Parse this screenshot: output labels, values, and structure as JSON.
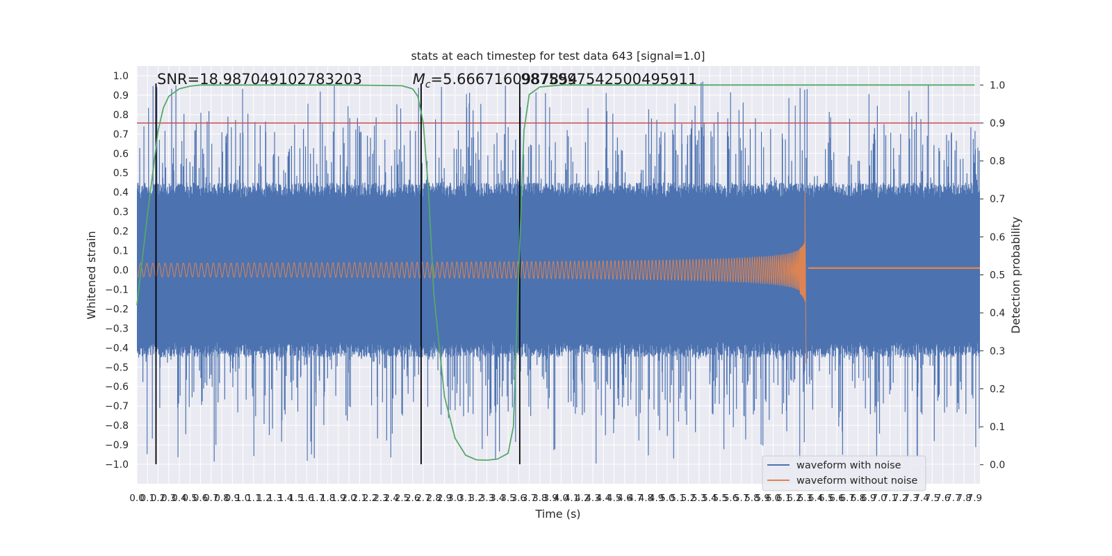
{
  "chart_data": {
    "type": "line",
    "title": "stats at each timestep for test data 643 [signal=1.0]",
    "xlabel": "Time (s)",
    "ylabel_left": "Whitened strain",
    "ylabel_right": "Detection probability",
    "xlim": [
      0.0,
      7.95
    ],
    "ylim_left": [
      -1.1,
      1.05
    ],
    "ylim_right": [
      -0.05,
      1.05
    ],
    "x_ticks": [
      "0.0",
      "0.1",
      "0.2",
      "0.3",
      "0.4",
      "0.5",
      "0.6",
      "0.7",
      "0.8",
      "0.9",
      "1.0",
      "1.1",
      "1.2",
      "1.3",
      "1.4",
      "1.5",
      "1.6",
      "1.7",
      "1.8",
      "1.9",
      "2.0",
      "2.1",
      "2.2",
      "2.3",
      "2.4",
      "2.5",
      "2.6",
      "2.7",
      "2.8",
      "2.9",
      "3.0",
      "3.1",
      "3.2",
      "3.3",
      "3.4",
      "3.5",
      "3.6",
      "3.7",
      "3.8",
      "3.9",
      "4.0",
      "4.1",
      "4.2",
      "4.3",
      "4.4",
      "4.5",
      "4.6",
      "4.7",
      "4.8",
      "4.9",
      "5.0",
      "5.1",
      "5.2",
      "5.3",
      "5.4",
      "5.5",
      "5.6",
      "5.7",
      "5.8",
      "5.9",
      "6.0",
      "6.1",
      "6.2",
      "6.3",
      "6.4",
      "6.5",
      "6.6",
      "6.7",
      "6.8",
      "6.9",
      "7.0",
      "7.1",
      "7.2",
      "7.3",
      "7.4",
      "7.5",
      "7.6",
      "7.7",
      "7.8",
      "7.9"
    ],
    "y_ticks_left": [
      "1.0",
      "0.9",
      "0.8",
      "0.7",
      "0.6",
      "0.5",
      "0.4",
      "0.3",
      "0.2",
      "0.1",
      "0.0",
      "−0.1",
      "−0.2",
      "−0.3",
      "−0.4",
      "−0.5",
      "−0.6",
      "−0.7",
      "−0.8",
      "−0.9",
      "−1.0"
    ],
    "y_ticks_right": [
      "1.0",
      "0.9",
      "0.8",
      "0.7",
      "0.6",
      "0.5",
      "0.4",
      "0.3",
      "0.2",
      "0.1",
      "0.0"
    ],
    "series": [
      {
        "name": "waveform with noise",
        "color": "#4c72b0",
        "style": "dense noise band",
        "envelope_typical": [
          -0.45,
          0.45
        ],
        "envelope_peaks": [
          -1.0,
          0.97
        ]
      },
      {
        "name": "waveform without noise",
        "color": "#dd8452",
        "style": "chirp",
        "start_amplitude": 0.035,
        "peak_time": 6.3,
        "peak_max": 0.41,
        "peak_min": -0.48,
        "post_merger_level": 0.01
      },
      {
        "color": "#55a868",
        "axis": "right",
        "x": [
          0.0,
          0.1,
          0.2,
          0.25,
          0.3,
          0.4,
          0.5,
          0.6,
          0.7,
          0.8,
          0.9,
          1.0,
          2.0,
          2.5,
          2.6,
          2.65,
          2.7,
          2.75,
          2.8,
          2.9,
          3.0,
          3.1,
          3.2,
          3.3,
          3.4,
          3.5,
          3.55,
          3.6,
          3.65,
          3.7,
          3.8,
          4.0,
          5.0,
          6.0,
          7.0,
          7.9
        ],
        "values": [
          0.42,
          0.66,
          0.88,
          0.94,
          0.97,
          0.99,
          0.997,
          1.0,
          1.0,
          1.0,
          1.0,
          1.0,
          1.0,
          0.998,
          0.99,
          0.97,
          0.9,
          0.72,
          0.45,
          0.18,
          0.07,
          0.025,
          0.013,
          0.012,
          0.015,
          0.03,
          0.1,
          0.5,
          0.88,
          0.975,
          0.995,
          1.0,
          1.0,
          1.0,
          1.0,
          1.0
        ]
      }
    ],
    "threshold_line": {
      "axis": "right",
      "value": 0.9,
      "color": "#c44e52"
    },
    "vertical_lines_x": [
      0.18,
      2.68,
      3.61
    ],
    "annotations": [
      {
        "text": "SNR=18.987049102783203",
        "x": 0.19
      },
      {
        "text_prefix": "M",
        "text_sub": "c",
        "text_rest": "=5.6667160987854",
        "x": 2.6
      },
      {
        "text": "9875997542500495911",
        "x": 3.62
      }
    ],
    "legend": {
      "position": "bottom-right",
      "entries": [
        "waveform with noise",
        "waveform without noise"
      ]
    },
    "grid": true,
    "colors": {
      "background": "#eaeaf2",
      "grid": "#ffffff",
      "noise": "#4c72b0",
      "clean": "#dd8452",
      "prob": "#55a868",
      "threshold": "#c44e52",
      "vline": "#000000"
    }
  }
}
